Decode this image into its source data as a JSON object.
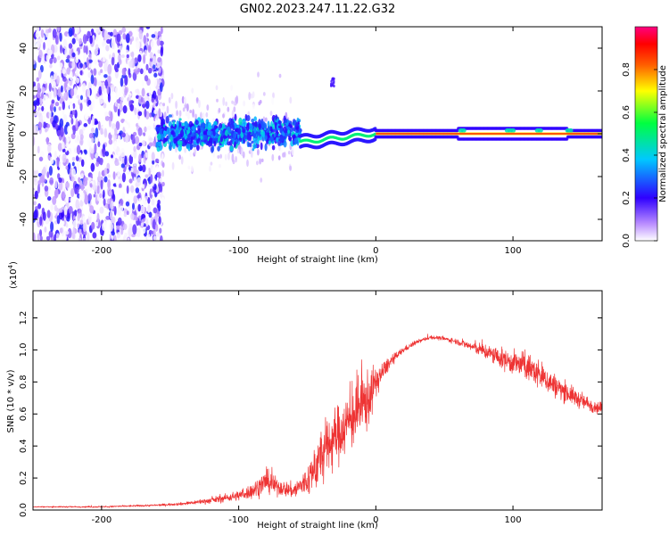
{
  "title": "GN02.2023.247.11.22.G32",
  "chart_data": [
    {
      "type": "heatmap",
      "xlabel": "Height of straight line (km)",
      "ylabel": "Frequency (Hz)",
      "xlim": [
        -250,
        165
      ],
      "ylim": [
        -50,
        50
      ],
      "xticks": [
        -200,
        -100,
        0,
        100
      ],
      "yticks": [
        -40,
        -20,
        0,
        20,
        40
      ],
      "colorbar": {
        "label": "Normalized spectral amplitude",
        "range": [
          0,
          1
        ],
        "ticks": [
          0.0,
          0.2,
          0.4,
          0.6,
          0.8
        ],
        "colors": [
          "#ffffff",
          "#8a4fff",
          "#2f00ff",
          "#00c8ff",
          "#00ff60",
          "#ffff00",
          "#ff6000",
          "#ff0000",
          "#ff0080"
        ]
      },
      "features": [
        {
          "name": "scattered noise",
          "x": [
            -250,
            -160
          ],
          "freq_spread": 50,
          "amplitude": 0.15
        },
        {
          "name": "transition blob",
          "x": [
            -160,
            -55
          ],
          "freq_spread": 12,
          "amplitude": 0.35
        },
        {
          "name": "converging trace",
          "x": [
            -55,
            0
          ],
          "freq": [
            -4,
            0
          ],
          "amplitude": 0.6
        },
        {
          "name": "carrier line",
          "x": [
            0,
            165
          ],
          "freq": 0,
          "amplitude": 0.95
        },
        {
          "name": "isolated patch",
          "x": [
            -33,
            -30
          ],
          "freq": [
            22,
            26
          ],
          "amplitude": 0.2
        }
      ]
    },
    {
      "type": "line",
      "xlabel": "Height of straight line (km)",
      "ylabel": "SNR (10 * v/v)",
      "y_scale_label": "(x10",
      "y_scale_exp": "4",
      "y_scale_suffix": ")",
      "xlim": [
        -250,
        165
      ],
      "ylim": [
        0,
        1.37
      ],
      "xticks": [
        -200,
        -100,
        0,
        100
      ],
      "yticks": [
        0.0,
        0.2,
        0.4,
        0.6,
        0.8,
        1.0,
        1.2
      ],
      "series": [
        {
          "name": "SNR",
          "color": "#ee3333",
          "x": [
            -250,
            -200,
            -160,
            -140,
            -120,
            -100,
            -90,
            -80,
            -70,
            -60,
            -50,
            -40,
            -35,
            -30,
            -20,
            -10,
            -5,
            0,
            10,
            20,
            30,
            40,
            50,
            60,
            70,
            80,
            90,
            100,
            110,
            120,
            130,
            140,
            150,
            165
          ],
          "mean": [
            0.02,
            0.02,
            0.03,
            0.04,
            0.06,
            0.09,
            0.12,
            0.18,
            0.14,
            0.12,
            0.18,
            0.33,
            0.4,
            0.45,
            0.55,
            0.65,
            0.7,
            0.8,
            0.92,
            1.0,
            1.05,
            1.08,
            1.07,
            1.05,
            1.02,
            0.99,
            0.95,
            0.92,
            0.9,
            0.84,
            0.78,
            0.73,
            0.68,
            0.63
          ],
          "noise": [
            0.005,
            0.008,
            0.01,
            0.015,
            0.03,
            0.05,
            0.08,
            0.12,
            0.08,
            0.08,
            0.16,
            0.3,
            0.3,
            0.3,
            0.3,
            0.35,
            0.3,
            0.15,
            0.06,
            0.03,
            0.02,
            0.02,
            0.02,
            0.03,
            0.05,
            0.08,
            0.1,
            0.12,
            0.14,
            0.15,
            0.12,
            0.1,
            0.08,
            0.06
          ]
        }
      ]
    }
  ]
}
